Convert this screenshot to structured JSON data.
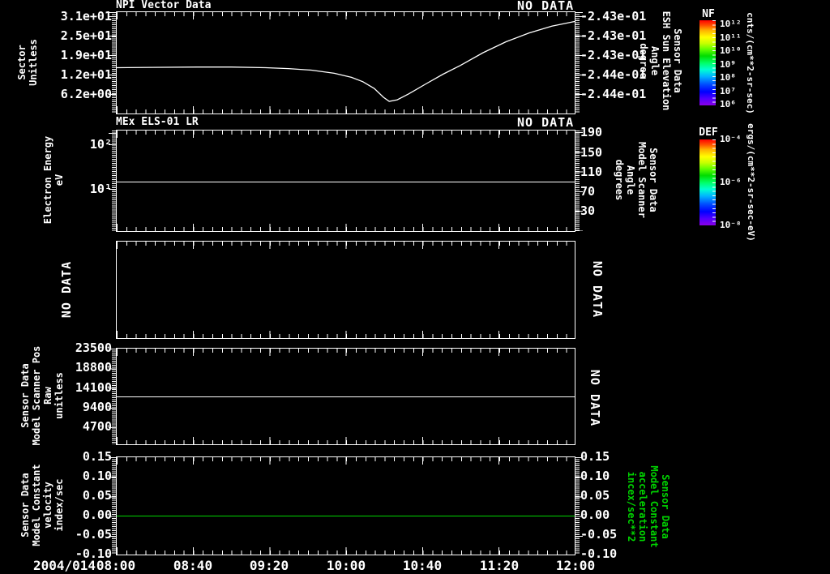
{
  "panels": [
    {
      "title": "NPI Vector Data",
      "no_data": "NO DATA",
      "left_axis_label": "Sector\nUnitless",
      "left_ticks": [
        "3.1e+01",
        "2.5e+01",
        "1.9e+01",
        "1.2e+01",
        "6.2e+00"
      ],
      "right_ticks": [
        "-2.43e-01",
        "-2.43e-01",
        "-2.43e-01",
        "-2.44e-01",
        "-2.44e-01"
      ],
      "right_axis_label": "Sensor Data\nESH Sun Elevation\nAngle\ndegree"
    },
    {
      "title": "MEx ELS-01 LR",
      "no_data": "NO DATA",
      "left_axis_label": "Electron Energy\neV",
      "left_ticks": [
        "10²",
        "10¹"
      ],
      "right_ticks": [
        "190",
        "150",
        "110",
        "70",
        "30"
      ],
      "right_axis_label": "Sensor Data\nModel Scanner\nAngle\ndegrees"
    },
    {
      "no_data_left": "NO DATA",
      "no_data_right": "NO DATA"
    },
    {
      "left_axis_label": "Sensor Data\nModel Scanner Pos\nRaw\nunitless",
      "left_ticks": [
        "23500",
        "18800",
        "14100",
        "9400",
        "4700"
      ],
      "no_data_right": "NO DATA"
    },
    {
      "left_axis_label": "Sensor Data\nModel Constant\nvelocity\nindex/sec",
      "left_ticks": [
        "0.15",
        "0.10",
        "0.05",
        "0.00",
        "-0.05",
        "-0.10"
      ],
      "right_ticks": [
        "0.15",
        "0.10",
        "0.05",
        "0.00",
        "-0.05",
        "-0.10"
      ],
      "right_axis_label": "Sensor Data\nModel Constant\nacceleration\nincex/sec**2"
    }
  ],
  "x_axis": {
    "date": "2004/014",
    "tick_labels": [
      "08:00",
      "08:40",
      "09:20",
      "10:00",
      "10:40",
      "11:20",
      "12:00"
    ]
  },
  "colorbars": [
    {
      "name": "NF",
      "tick_labels": [
        "10¹²",
        "10¹¹",
        "10¹⁰",
        "10⁹",
        "10⁸",
        "10⁷",
        "10⁶"
      ],
      "unit": "cnts/(cm**2-sr-sec)"
    },
    {
      "name": "DEF",
      "tick_labels": [
        "10⁻⁴",
        "10⁻⁶",
        "10⁻⁸"
      ],
      "unit": "ergs/(cm**2-sr-sec-eV)"
    }
  ],
  "colors": {
    "background": "#000000",
    "foreground": "#ffffff",
    "accent_green": "#00d400"
  },
  "chart_data": [
    {
      "type": "line",
      "title": "NPI Vector Data",
      "ylabel": "Sector Unitless",
      "y2label": "Sensor Data ESH Sun Elevation Angle degree",
      "y2_ticks": [
        "-2.43e-01",
        "-2.43e-01",
        "-2.43e-01",
        "-2.44e-01",
        "-2.44e-01"
      ],
      "xlim": [
        8.0,
        12.0
      ],
      "ylim": [
        0,
        32.5
      ],
      "yticks": [
        6.2,
        12.4,
        18.6,
        24.8,
        31.0
      ],
      "series": [
        {
          "name": "Sector",
          "color": "#ffffff",
          "x": [
            8.0,
            8.3,
            8.7,
            9.0,
            9.3,
            9.5,
            9.7,
            9.9,
            10.05,
            10.15,
            10.25,
            10.33,
            10.38,
            10.45,
            10.55,
            10.7,
            10.85,
            11.0,
            11.2,
            11.4,
            11.6,
            11.8,
            12.0
          ],
          "y": [
            14.7,
            14.8,
            14.9,
            14.9,
            14.7,
            14.4,
            13.9,
            12.9,
            11.6,
            10.2,
            8.0,
            5.2,
            3.9,
            4.4,
            6.3,
            9.5,
            12.6,
            15.4,
            19.5,
            23.0,
            25.8,
            28.0,
            29.5
          ]
        }
      ]
    },
    {
      "type": "line",
      "title": "MEx ELS-01 LR",
      "ylabel": "Electron Energy eV",
      "yscale": "log",
      "ylim": [
        1.1,
        210
      ],
      "hline": 14.6,
      "y2label": "Sensor Data Model Scanner Angle degrees",
      "y2_ticks": [
        30,
        70,
        110,
        150,
        190
      ]
    },
    {
      "type": "empty",
      "note": "NO DATA"
    },
    {
      "type": "line",
      "ylabel": "Sensor Data Model Scanner Pos Raw unitless",
      "ylim": [
        0,
        23500
      ],
      "hline": 11750
    },
    {
      "type": "line",
      "ylabel": "Sensor Data Model Constant velocity index/sec",
      "y2label": "Sensor Data Model Constant acceleration incex/sec**2",
      "ylim": [
        -0.1,
        0.15
      ],
      "hline": 0.0,
      "line_color": "#00d400"
    }
  ]
}
